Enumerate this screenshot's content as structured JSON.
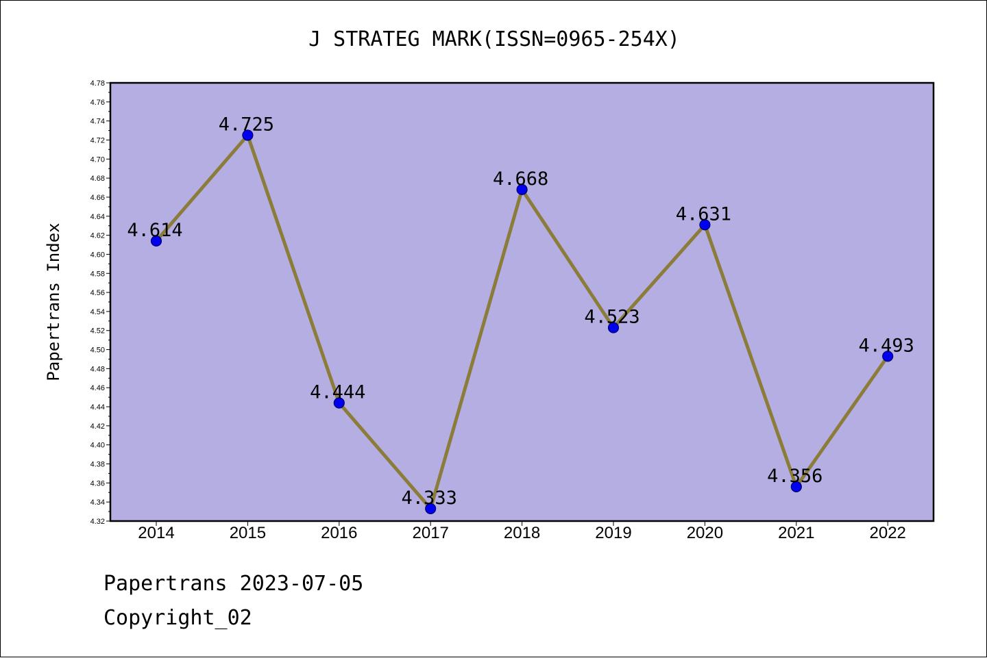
{
  "chart_data": {
    "type": "line",
    "title": "J STRATEG MARK(ISSN=0965-254X)",
    "ylabel": "Papertrans Index",
    "xlabel": "",
    "categories": [
      "2014",
      "2015",
      "2016",
      "2017",
      "2018",
      "2019",
      "2020",
      "2021",
      "2022"
    ],
    "series": [
      {
        "values": [
          4.614,
          4.725,
          4.444,
          4.333,
          4.668,
          4.523,
          4.631,
          4.356,
          4.493
        ],
        "labels": [
          "4.614",
          "4.725",
          "4.444",
          "4.333",
          "4.668",
          "4.523",
          "4.631",
          "4.356",
          "4.493"
        ]
      }
    ],
    "ylim": [
      4.32,
      4.78
    ],
    "ytick_step": 0.02,
    "yticks": [
      "4.32",
      "4.34",
      "4.36",
      "4.38",
      "4.40",
      "4.42",
      "4.44",
      "4.46",
      "4.48",
      "4.50",
      "4.52",
      "4.54",
      "4.56",
      "4.58",
      "4.60",
      "4.62",
      "4.64",
      "4.66",
      "4.68",
      "4.70",
      "4.72",
      "4.74",
      "4.76",
      "4.78"
    ],
    "grid": false,
    "legend": "none",
    "colors": {
      "plot_background": "#b4aee2",
      "line": "#8c7c3a",
      "marker": "#0000ee",
      "marker_edge": "#00006e"
    }
  },
  "footer": {
    "date_line": "Papertrans 2023-07-05",
    "copyright_line": "Copyright_02"
  }
}
